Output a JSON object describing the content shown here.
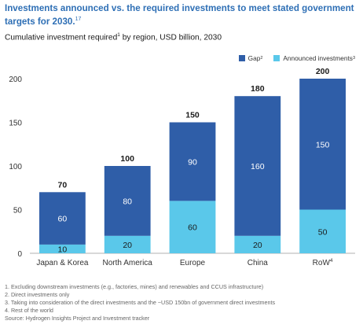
{
  "title": "Investments announced vs. the required investments to meet stated government targets for 2030.",
  "title_footnote": "17",
  "subtitle_pre": "Cumulative investment required",
  "subtitle_sup": "1",
  "subtitle_post": " by region, USD billion, 2030",
  "legend": [
    {
      "label": "Gap",
      "sup": "2",
      "color": "#2f5ea8"
    },
    {
      "label": "Announced investments",
      "sup": "3",
      "color": "#5ac8ea"
    }
  ],
  "chart_data": {
    "type": "bar",
    "stacked": true,
    "categories": [
      "Japan & Korea",
      "North America",
      "Europe",
      "China",
      "RoW"
    ],
    "category_sups": [
      "",
      "",
      "",
      "",
      "4"
    ],
    "ylim": [
      0,
      200
    ],
    "yticks": [
      0,
      50,
      100,
      150,
      200
    ],
    "series": [
      {
        "name": "Announced investments",
        "values": [
          10,
          20,
          60,
          20,
          50
        ],
        "color": "#5ac8ea"
      },
      {
        "name": "Gap",
        "values": [
          60,
          80,
          90,
          160,
          150
        ],
        "color": "#2f5ea8"
      }
    ],
    "totals": [
      70,
      100,
      150,
      180,
      200
    ],
    "grid": false,
    "legend_position": "top-right"
  },
  "footnotes": [
    "1. Excluding downstream investments (e.g., factories, mines) and renewables and CCUS infrastructure)",
    "2. Direct investments only",
    "3. Taking into consideration of the direct investments and the ~USD 150bn of government direct investments",
    "4. Rest of the world",
    "Source: Hydrogen Insights Project and Investment tracker"
  ]
}
